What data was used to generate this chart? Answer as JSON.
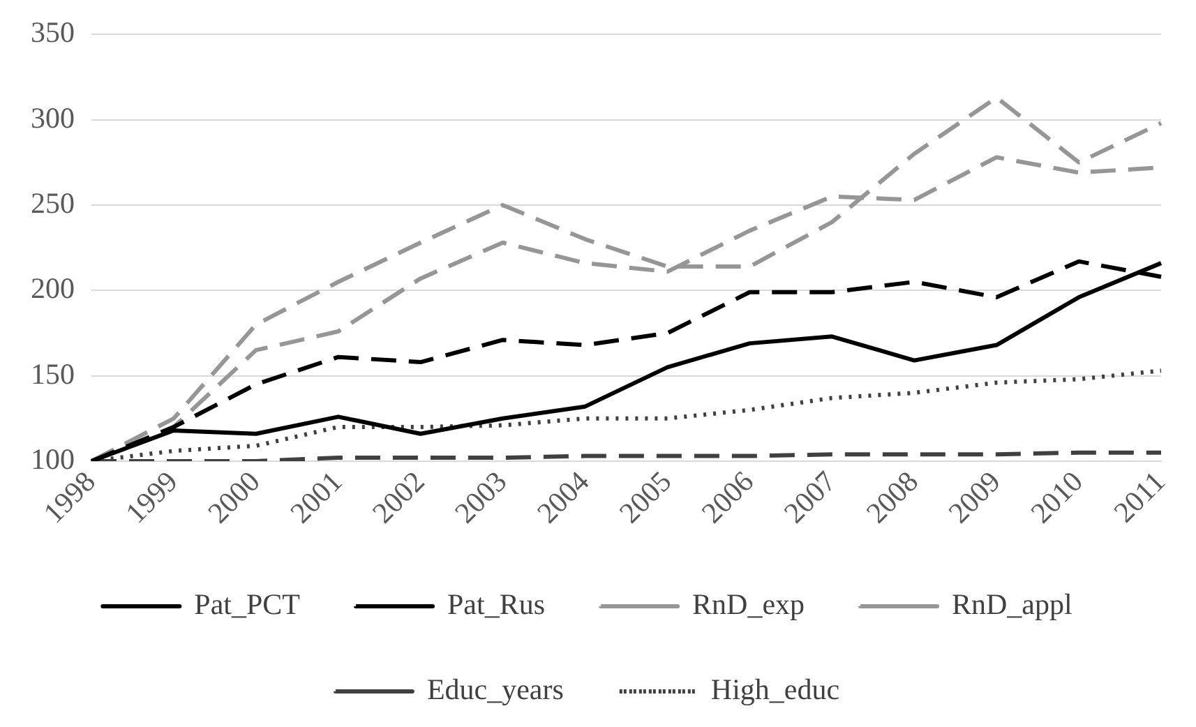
{
  "chart_data": {
    "type": "line",
    "categories": [
      "1998",
      "1999",
      "2000",
      "2001",
      "2002",
      "2003",
      "2004",
      "2005",
      "2006",
      "2007",
      "2008",
      "2009",
      "2010",
      "2011"
    ],
    "ylim": [
      100,
      350
    ],
    "yticks": [
      100,
      150,
      200,
      250,
      300,
      350
    ],
    "grid": "y",
    "legend": "bottom",
    "marker": "none",
    "series": [
      {
        "name": "Pat_PCT",
        "color": "#000000",
        "line_style": "solid",
        "values": [
          100,
          118,
          116,
          126,
          116,
          125,
          132,
          155,
          169,
          173,
          159,
          168,
          196,
          216
        ]
      },
      {
        "name": "Pat_Rus",
        "color": "#000000",
        "line_style": "dashed",
        "values": [
          100,
          120,
          145,
          161,
          158,
          171,
          168,
          175,
          199,
          199,
          205,
          196,
          217,
          208
        ]
      },
      {
        "name": "RnD_exp",
        "color": "#969696",
        "line_style": "dashed",
        "values": [
          100,
          120,
          165,
          176,
          207,
          228,
          216,
          211,
          235,
          255,
          253,
          278,
          269,
          272
        ]
      },
      {
        "name": "RnD_appl",
        "color": "#969696",
        "line_style": "dashed",
        "values": [
          100,
          125,
          180,
          205,
          228,
          250,
          230,
          214,
          214,
          240,
          280,
          313,
          275,
          298
        ]
      },
      {
        "name": "Educ_years",
        "color": "#404040",
        "line_style": "dashed",
        "values": [
          100,
          100,
          100,
          102,
          102,
          102,
          103,
          103,
          103,
          104,
          104,
          104,
          105,
          105
        ]
      },
      {
        "name": "High_educ",
        "color": "#404040",
        "line_style": "dotted",
        "values": [
          100,
          106,
          109,
          120,
          120,
          121,
          125,
          125,
          130,
          137,
          140,
          146,
          148,
          153
        ]
      }
    ]
  }
}
